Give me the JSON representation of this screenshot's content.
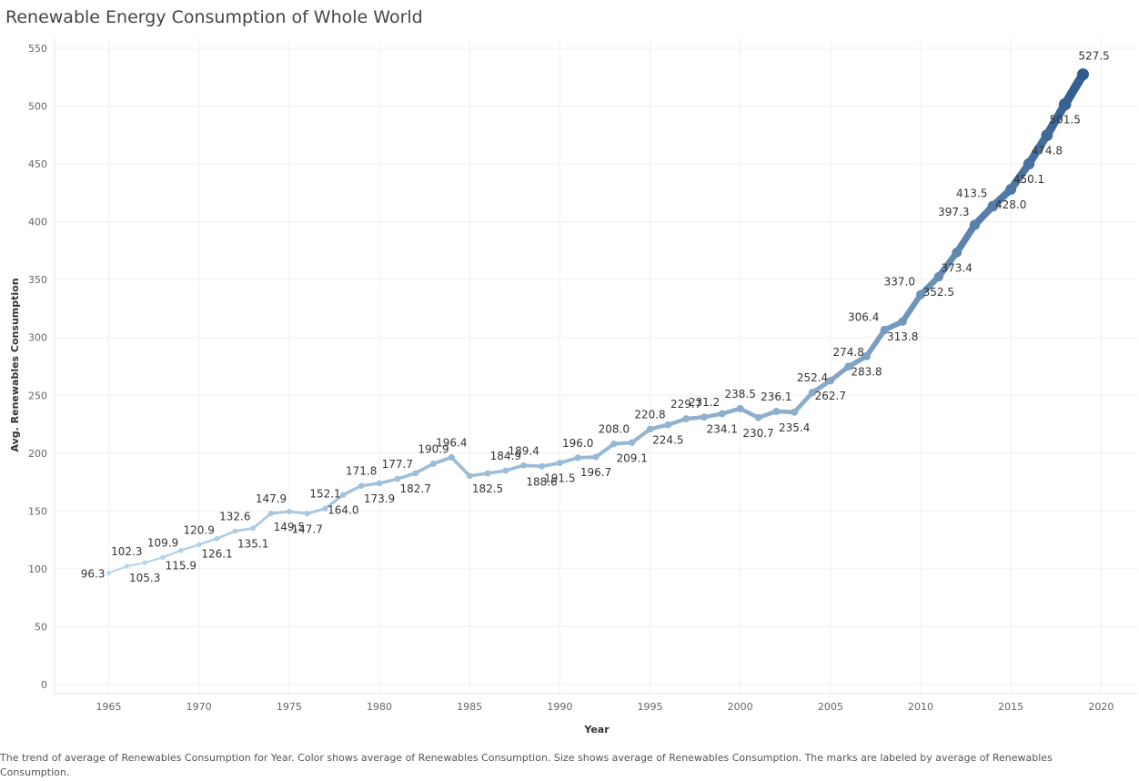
{
  "chart_data": {
    "type": "line",
    "title": "Renewable Energy Consumption of Whole World",
    "xlabel": "Year",
    "ylabel": "Avg. Renewables Consumption",
    "xlim": [
      1962,
      2022
    ],
    "ylim": [
      0,
      550
    ],
    "x_ticks": [
      1965,
      1970,
      1975,
      1980,
      1985,
      1990,
      1995,
      2000,
      2005,
      2010,
      2015,
      2020
    ],
    "y_ticks": [
      0,
      50,
      100,
      150,
      200,
      250,
      300,
      350,
      400,
      450,
      500,
      550
    ],
    "grid": true,
    "color_scale": [
      "#b9d7ea",
      "#2f5b8f"
    ],
    "x": [
      1965,
      1966,
      1967,
      1968,
      1969,
      1970,
      1971,
      1972,
      1973,
      1974,
      1975,
      1976,
      1977,
      1978,
      1979,
      1980,
      1981,
      1982,
      1983,
      1984,
      1985,
      1986,
      1987,
      1988,
      1989,
      1990,
      1991,
      1992,
      1993,
      1994,
      1995,
      1996,
      1997,
      1998,
      1999,
      2000,
      2001,
      2002,
      2003,
      2004,
      2005,
      2006,
      2007,
      2008,
      2009,
      2010,
      2011,
      2012,
      2013,
      2014,
      2015,
      2016,
      2017,
      2018,
      2019
    ],
    "y": [
      96.3,
      102.3,
      105.3,
      109.9,
      115.9,
      120.9,
      126.1,
      132.6,
      135.1,
      147.9,
      149.5,
      147.7,
      152.1,
      164.0,
      171.8,
      173.9,
      177.7,
      182.7,
      190.9,
      196.4,
      180.4,
      182.5,
      184.9,
      189.4,
      188.6,
      191.5,
      196.0,
      196.7,
      208.0,
      209.1,
      220.8,
      224.5,
      229.7,
      231.2,
      234.1,
      238.5,
      230.7,
      236.1,
      235.4,
      252.4,
      262.7,
      274.8,
      283.8,
      306.4,
      313.8,
      337.0,
      352.5,
      373.4,
      397.3,
      413.5,
      428.0,
      450.1,
      474.8,
      501.5,
      527.5
    ],
    "labels": [
      {
        "x": 1965,
        "text": "96.3",
        "pos": "left"
      },
      {
        "x": 1966,
        "text": "102.3",
        "pos": "above"
      },
      {
        "x": 1967,
        "text": "105.3",
        "pos": "below"
      },
      {
        "x": 1968,
        "text": "109.9",
        "pos": "above"
      },
      {
        "x": 1969,
        "text": "115.9",
        "pos": "below"
      },
      {
        "x": 1970,
        "text": "120.9",
        "pos": "above"
      },
      {
        "x": 1971,
        "text": "126.1",
        "pos": "below"
      },
      {
        "x": 1972,
        "text": "132.6",
        "pos": "above"
      },
      {
        "x": 1973,
        "text": "135.1",
        "pos": "below"
      },
      {
        "x": 1974,
        "text": "147.9",
        "pos": "above"
      },
      {
        "x": 1975,
        "text": "149.5",
        "pos": "below"
      },
      {
        "x": 1976,
        "text": "147.7",
        "pos": "below"
      },
      {
        "x": 1977,
        "text": "152.1",
        "pos": "above"
      },
      {
        "x": 1978,
        "text": "164.0",
        "pos": "below"
      },
      {
        "x": 1979,
        "text": "171.8",
        "pos": "above"
      },
      {
        "x": 1980,
        "text": "173.9",
        "pos": "below"
      },
      {
        "x": 1981,
        "text": "177.7",
        "pos": "above"
      },
      {
        "x": 1982,
        "text": "182.7",
        "pos": "below"
      },
      {
        "x": 1983,
        "text": "190.9",
        "pos": "above"
      },
      {
        "x": 1984,
        "text": "196.4",
        "pos": "above"
      },
      {
        "x": 1986,
        "text": "182.5",
        "pos": "below"
      },
      {
        "x": 1987,
        "text": "184.9",
        "pos": "above"
      },
      {
        "x": 1988,
        "text": "189.4",
        "pos": "above"
      },
      {
        "x": 1989,
        "text": "188.6",
        "pos": "below"
      },
      {
        "x": 1990,
        "text": "191.5",
        "pos": "below"
      },
      {
        "x": 1991,
        "text": "196.0",
        "pos": "above"
      },
      {
        "x": 1992,
        "text": "196.7",
        "pos": "below"
      },
      {
        "x": 1993,
        "text": "208.0",
        "pos": "above"
      },
      {
        "x": 1994,
        "text": "209.1",
        "pos": "below"
      },
      {
        "x": 1995,
        "text": "220.8",
        "pos": "above"
      },
      {
        "x": 1996,
        "text": "224.5",
        "pos": "below"
      },
      {
        "x": 1997,
        "text": "229.7",
        "pos": "above"
      },
      {
        "x": 1998,
        "text": "231.2",
        "pos": "above"
      },
      {
        "x": 1999,
        "text": "234.1",
        "pos": "below"
      },
      {
        "x": 2000,
        "text": "238.5",
        "pos": "above"
      },
      {
        "x": 2001,
        "text": "230.7",
        "pos": "below"
      },
      {
        "x": 2002,
        "text": "236.1",
        "pos": "above"
      },
      {
        "x": 2003,
        "text": "235.4",
        "pos": "below"
      },
      {
        "x": 2004,
        "text": "252.4",
        "pos": "above"
      },
      {
        "x": 2005,
        "text": "262.7",
        "pos": "below"
      },
      {
        "x": 2006,
        "text": "274.8",
        "pos": "above"
      },
      {
        "x": 2007,
        "text": "283.8",
        "pos": "below"
      },
      {
        "x": 2008,
        "text": "306.4",
        "pos": "above-left"
      },
      {
        "x": 2009,
        "text": "313.8",
        "pos": "below"
      },
      {
        "x": 2010,
        "text": "337.0",
        "pos": "above-left"
      },
      {
        "x": 2011,
        "text": "352.5",
        "pos": "below"
      },
      {
        "x": 2012,
        "text": "373.4",
        "pos": "below"
      },
      {
        "x": 2013,
        "text": "397.3",
        "pos": "above-left"
      },
      {
        "x": 2014,
        "text": "413.5",
        "pos": "above-left"
      },
      {
        "x": 2015,
        "text": "428.0",
        "pos": "below"
      },
      {
        "x": 2016,
        "text": "450.1",
        "pos": "below"
      },
      {
        "x": 2017,
        "text": "474.8",
        "pos": "below"
      },
      {
        "x": 2018,
        "text": "501.5",
        "pos": "below"
      },
      {
        "x": 2019,
        "text": "527.5",
        "pos": "above"
      }
    ]
  },
  "caption": "The trend of average of Renewables Consumption for Year.  Color shows average of Renewables Consumption.  Size shows average of Renewables Consumption.  The marks are labeled by average of Renewables Consumption."
}
